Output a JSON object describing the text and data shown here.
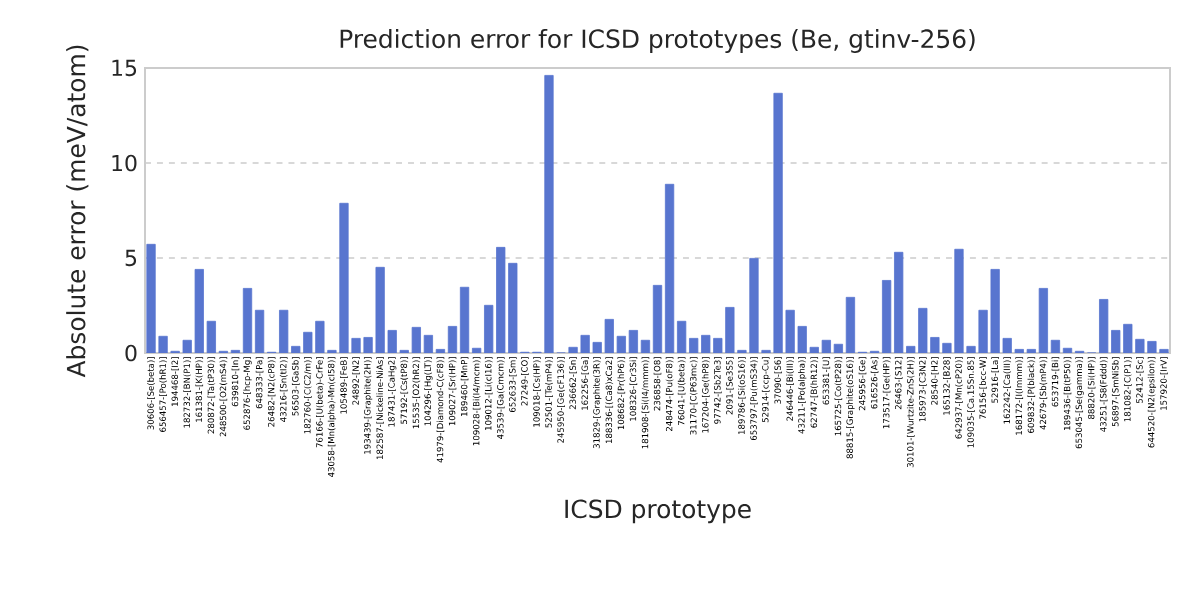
{
  "chart_data": {
    "type": "bar",
    "title": "Prediction error for ICSD prototypes (Be, gtinv-256)",
    "xlabel": "ICSD prototype",
    "ylabel": "Absolute error (meV/atom)",
    "categories": [
      "30606-[Se(beta)]",
      "656457-[Po(hR1)]",
      "194468-[I2]",
      "182732-[BN(P1)]",
      "161381-[K(HP)]",
      "280872-[Ta(tP30)]",
      "248500-[O2(mS4)]",
      "639810-[In]",
      "652876-[hcp-Mg]",
      "648333-[Pa]",
      "26482-[N2(cP8)]",
      "43216-[Sn(tI2)]",
      "56503-[GaSb]",
      "182760-[C(C2/m)]",
      "76166-[U(beta)-CrFe]",
      "43058-[Mn(alpha)-Mn(cI58)]",
      "105489-[FeB]",
      "24892-[N2]",
      "193439-[Graphite(2H)]",
      "182587-[Nickeline-NiAs]",
      "187431-[CaHg2]",
      "57192-[Cs(tP8)]",
      "15535-[O2(hR2)]",
      "104296-[Hg(LT)]",
      "41979-[Diamond-C(cF8)]",
      "109027-[Sr(HP)]",
      "189460-[MnP]",
      "109028-[Bi(I4/mcm)]",
      "109012-[Li(cI16)]",
      "43539-[Ga(Cmcm)]",
      "652633-[Sm]",
      "27249-[CO]",
      "109018-[Cs(HP)]",
      "52501-[Te(mP4)]",
      "245950-[Ge(cF136)]",
      "236662-[Sn]",
      "162256-[Ga]",
      "31829-[Graphite(3R)]",
      "188336-[(Ca8)xCa2]",
      "108682-[Pr(hP6)]",
      "108326-[Cr3Si]",
      "181908-[Si(I4/mmm)]",
      "236858-[O8]",
      "248474-[Pu(oF8)]",
      "76041-[U(beta)]",
      "31170-[C(P63mc)]",
      "167204-[Ge(hP8)]",
      "97742-[Sb2Te3]",
      "2091-[Se3S5]",
      "189786-[Si(oS16)]",
      "653797-[Pu(mS34)]",
      "52914-[ccp-Cu]",
      "37090-[S6]",
      "246446-[Bi(III)]",
      "43211-[Po(alpha)]",
      "62747-[B(hR12)]",
      "653381-[U]",
      "165725-[Co(tP28)]",
      "88815-[Graphite(oS16)]",
      "245956-[Ge]",
      "616526-[As]",
      "173517-[Ge(HP)]",
      "26463-[S12]",
      "30101-[Wurtzite-ZnS(2H)]",
      "185973-[C3N2]",
      "28540-[H2]",
      "165132-[B28]",
      "642937-[Mn(cP20)]",
      "109035-[Ca.15Sn.85]",
      "76156-[bcc-W]",
      "52916-[La]",
      "162242-[Ca(III)]",
      "168172-[I(Immm)]",
      "609832-[P(black)]",
      "42679-[Sb(mP4)]",
      "653719-[Bi]",
      "189436-[B(tP50)]",
      "653045-[Se(gamma)]",
      "88820-[Si(HP)]",
      "43251-[S8(Fddd)]",
      "56897-[SmNiSb]",
      "181082-[C(P1)]",
      "52412-[Sc]",
      "644520-[N2(epsilon)]",
      "157920-[IrV]"
    ],
    "values": [
      5.72,
      0.88,
      0.09,
      0.67,
      4.4,
      1.67,
      0.09,
      0.14,
      3.4,
      2.25,
      0.04,
      2.25,
      0.35,
      1.09,
      1.67,
      0.14,
      7.88,
      0.77,
      0.82,
      4.51,
      1.19,
      0.14,
      1.35,
      0.93,
      0.19,
      1.4,
      3.46,
      0.25,
      2.51,
      5.56,
      4.72,
      0.04,
      0.04,
      14.61,
      0,
      0.3,
      0.93,
      0.56,
      1.77,
      0.88,
      1.19,
      0.67,
      3.56,
      8.88,
      1.67,
      0.77,
      0.93,
      0.77,
      2.4,
      0.14,
      4.98,
      0.14,
      13.67,
      2.25,
      1.4,
      0.3,
      0.67,
      0.46,
      2.93,
      0.04,
      0.09,
      3.82,
      5.3,
      0.35,
      2.35,
      0.82,
      0.51,
      5.46,
      0.35,
      2.25,
      4.4,
      0.77,
      0.19,
      0.19,
      3.4,
      0.67,
      0.25,
      0.09,
      0,
      2.82,
      1.19,
      1.51,
      0.72,
      0.61,
      0.19
    ],
    "color": "#5875cf",
    "ylim": [
      0,
      15
    ],
    "yticks": [
      0,
      5,
      10,
      15
    ],
    "grid": "y"
  }
}
